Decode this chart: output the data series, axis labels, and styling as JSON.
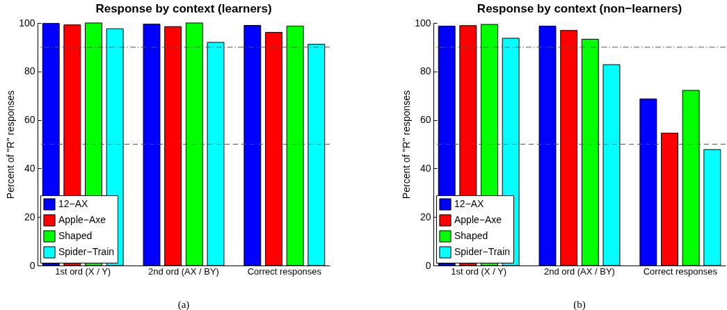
{
  "chart_data": [
    {
      "type": "bar",
      "title": "Response by context (learners)",
      "ylabel": "Percent of \"R\" responses",
      "categories": [
        "1st ord (X / Y)",
        "2nd ord (AX / BY)",
        "Correct responses"
      ],
      "series": [
        {
          "name": "12−AX",
          "color": "#0000ff",
          "values": [
            99.8,
            99.5,
            99.0
          ]
        },
        {
          "name": "Apple−Axe",
          "color": "#ff0000",
          "values": [
            99.2,
            98.5,
            96.1
          ]
        },
        {
          "name": "Shaped",
          "color": "#00ff00",
          "values": [
            100,
            100,
            98.7
          ]
        },
        {
          "name": "Spider−Train",
          "color": "#00ffff",
          "values": [
            97.6,
            92.0,
            91.2
          ]
        }
      ],
      "ylim": [
        0,
        100
      ],
      "yticks": [
        0,
        20,
        40,
        60,
        80,
        100
      ],
      "grid": false,
      "legend": "bottom left",
      "ref_lines": [
        {
          "axis": "y",
          "value": 90,
          "line_style": "dotted",
          "color": "#555555"
        },
        {
          "axis": "y",
          "value": 50,
          "line_style": "dashed",
          "color": "#555555"
        }
      ],
      "annotations": [
        "(a)"
      ]
    },
    {
      "type": "bar",
      "title": "Response by context (non−learners)",
      "ylabel": "Percent of \"R\" responses",
      "categories": [
        "1st ord (X / Y)",
        "2nd ord (AX / BY)",
        "Correct responses"
      ],
      "series": [
        {
          "name": "12−AX",
          "color": "#0000ff",
          "values": [
            98.7,
            98.7,
            68.7
          ]
        },
        {
          "name": "Apple−Axe",
          "color": "#ff0000",
          "values": [
            98.9,
            96.9,
            54.6
          ]
        },
        {
          "name": "Shaped",
          "color": "#00ff00",
          "values": [
            99.4,
            93.3,
            72.2
          ]
        },
        {
          "name": "Spider−Train",
          "color": "#00ffff",
          "values": [
            93.7,
            82.8,
            47.8
          ]
        }
      ],
      "ylim": [
        0,
        100
      ],
      "yticks": [
        0,
        20,
        40,
        60,
        80,
        100
      ],
      "grid": false,
      "legend": "bottom left",
      "ref_lines": [
        {
          "axis": "y",
          "value": 90,
          "line_style": "dotted",
          "color": "#555555"
        },
        {
          "axis": "y",
          "value": 50,
          "line_style": "dashed",
          "color": "#555555"
        }
      ],
      "annotations": [
        "(b)"
      ]
    }
  ]
}
